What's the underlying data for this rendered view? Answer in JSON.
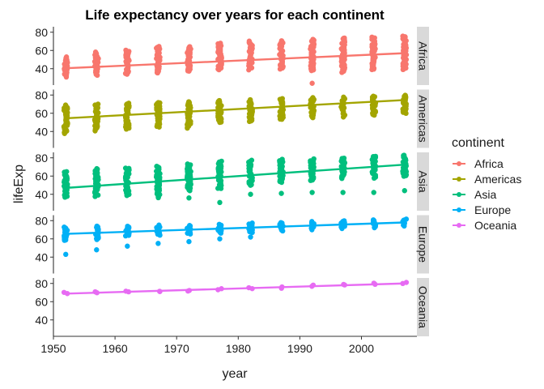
{
  "chart_data": {
    "type": "scatter",
    "title": "Life expectancy over years for each continent",
    "xlabel": "year",
    "ylabel": "lifeExp",
    "xlim": [
      1950,
      2009
    ],
    "ylim": [
      22,
      86
    ],
    "x_ticks": [
      1950,
      1960,
      1970,
      1980,
      1990,
      2000
    ],
    "y_ticks": [
      40,
      60,
      80
    ],
    "years": [
      1952,
      1957,
      1962,
      1967,
      1972,
      1977,
      1982,
      1987,
      1992,
      1997,
      2002,
      2007
    ],
    "legend": {
      "title": "continent",
      "position": "right"
    },
    "facets": [
      {
        "name": "Africa",
        "color": "#F8766D",
        "ranges": [
          [
            31,
            53
          ],
          [
            33,
            58
          ],
          [
            34,
            60
          ],
          [
            35,
            64
          ],
          [
            37,
            64
          ],
          [
            39,
            68
          ],
          [
            39,
            70
          ],
          [
            40,
            71
          ],
          [
            38,
            72
          ],
          [
            36,
            74
          ],
          [
            39,
            75
          ],
          [
            39,
            76
          ]
        ],
        "outliers": [
          [
            1992,
            24
          ]
        ],
        "fit": {
          "start": 40.5,
          "end": 57.0
        }
      },
      {
        "name": "Americas",
        "color": "#A3A500",
        "ranges": [
          [
            38,
            69
          ],
          [
            41,
            70
          ],
          [
            43,
            71
          ],
          [
            45,
            72
          ],
          [
            44,
            73
          ],
          [
            50,
            74
          ],
          [
            51,
            75
          ],
          [
            53,
            76
          ],
          [
            55,
            77
          ],
          [
            56,
            78
          ],
          [
            58,
            79
          ],
          [
            60,
            80
          ]
        ],
        "outliers": [
          [
            1977,
            50
          ]
        ],
        "fit": {
          "start": 54.5,
          "end": 74.5
        }
      },
      {
        "name": "Asia",
        "color": "#00BF7D",
        "ranges": [
          [
            37,
            65
          ],
          [
            38,
            68
          ],
          [
            39,
            69
          ],
          [
            36,
            71
          ],
          [
            44,
            73
          ],
          [
            46,
            76
          ],
          [
            50,
            77
          ],
          [
            53,
            78
          ],
          [
            55,
            79
          ],
          [
            57,
            80
          ],
          [
            58,
            82
          ],
          [
            60,
            83
          ]
        ],
        "outliers": [
          [
            1972,
            36
          ],
          [
            1977,
            31
          ],
          [
            1982,
            40
          ],
          [
            1987,
            41
          ],
          [
            1992,
            42
          ],
          [
            1997,
            42
          ],
          [
            2002,
            42
          ],
          [
            2007,
            44
          ]
        ],
        "fit": {
          "start": 47.0,
          "end": 72.5
        }
      },
      {
        "name": "Europe",
        "color": "#00B0F6",
        "ranges": [
          [
            58,
            73
          ],
          [
            59,
            74
          ],
          [
            63,
            74
          ],
          [
            64,
            75
          ],
          [
            65,
            75
          ],
          [
            66,
            76
          ],
          [
            67,
            77
          ],
          [
            69,
            78
          ],
          [
            70,
            79
          ],
          [
            71,
            80
          ],
          [
            72,
            81
          ],
          [
            74,
            82
          ]
        ],
        "outliers": [
          [
            1952,
            43
          ],
          [
            1957,
            48
          ],
          [
            1962,
            52
          ],
          [
            1967,
            55
          ],
          [
            1972,
            57
          ],
          [
            1977,
            60
          ],
          [
            1982,
            62
          ]
        ],
        "fit": {
          "start": 65.5,
          "end": 78.0
        }
      },
      {
        "name": "Oceania",
        "color": "#E76BF3",
        "ranges": [
          [
            69,
            70
          ],
          [
            70,
            70.5
          ],
          [
            71,
            71.2
          ],
          [
            71,
            71.5
          ],
          [
            71.5,
            72
          ],
          [
            73,
            74
          ],
          [
            74,
            75.5
          ],
          [
            75,
            76.5
          ],
          [
            76.5,
            78
          ],
          [
            78,
            79
          ],
          [
            79,
            80.5
          ],
          [
            80,
            81.5
          ]
        ],
        "outliers": [],
        "fit": {
          "start": 68.8,
          "end": 80.0
        }
      }
    ]
  }
}
